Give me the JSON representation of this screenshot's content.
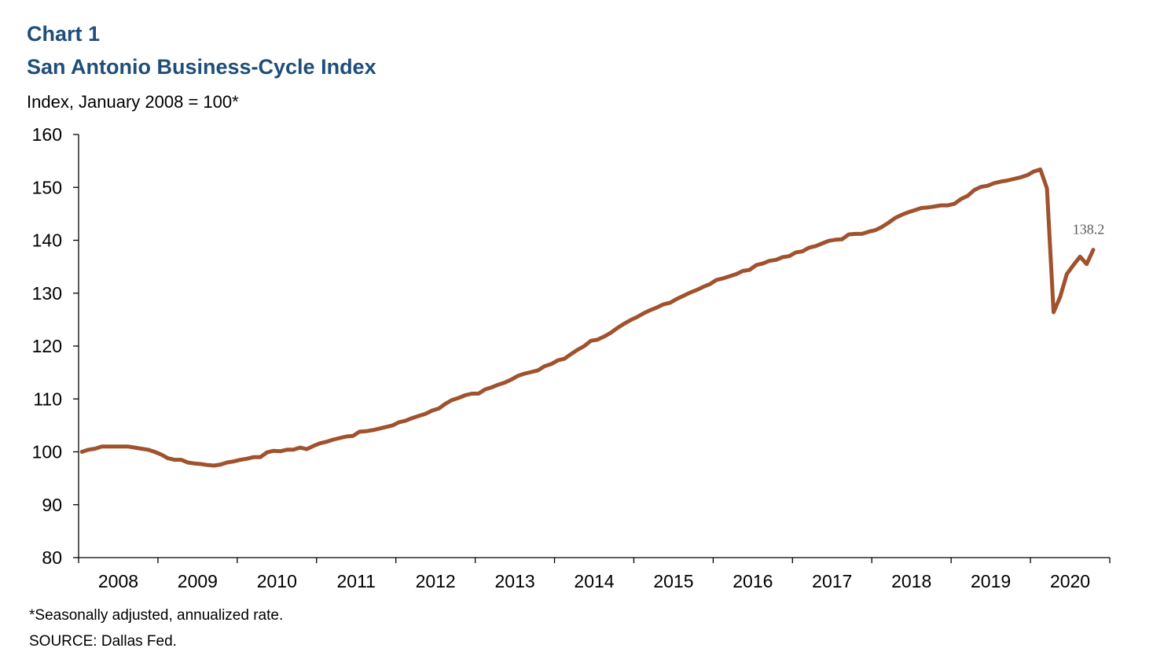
{
  "header": {
    "chart_number": "Chart 1",
    "title": "San Antonio Business-Cycle Index",
    "subtitle": "Index, January 2008 = 100*"
  },
  "footer": {
    "footnote": "*Seasonally adjusted, annualized rate.",
    "source": "SOURCE: Dallas Fed."
  },
  "colors": {
    "title": "#1f4e79",
    "series_line": "#a0522d",
    "axis": "#000000"
  },
  "chart_data": {
    "type": "line",
    "title": "San Antonio Business-Cycle Index",
    "ylabel": "Index, January 2008 = 100*",
    "xlabel": "",
    "ylim": [
      80,
      160
    ],
    "yticks": [
      80,
      90,
      100,
      110,
      120,
      130,
      140,
      150,
      160
    ],
    "xlim": [
      "2008-01",
      "2020-12"
    ],
    "year_labels": [
      "2008",
      "2009",
      "2010",
      "2011",
      "2012",
      "2013",
      "2014",
      "2015",
      "2016",
      "2017",
      "2018",
      "2019",
      "2020"
    ],
    "grid": false,
    "legend": "none",
    "end_label": "138.2",
    "series": [
      {
        "points": [
          [
            "2008-01",
            100.0
          ],
          [
            "2008-02",
            100.4
          ],
          [
            "2008-03",
            100.6
          ],
          [
            "2008-04",
            101.0
          ],
          [
            "2008-05",
            101.0
          ],
          [
            "2008-06",
            101.0
          ],
          [
            "2008-07",
            101.0
          ],
          [
            "2008-08",
            101.0
          ],
          [
            "2008-09",
            100.8
          ],
          [
            "2008-10",
            100.6
          ],
          [
            "2008-11",
            100.4
          ],
          [
            "2008-12",
            100.0
          ],
          [
            "2009-01",
            99.5
          ],
          [
            "2009-02",
            98.8
          ],
          [
            "2009-03",
            98.5
          ],
          [
            "2009-04",
            98.5
          ],
          [
            "2009-05",
            98.0
          ],
          [
            "2009-06",
            97.8
          ],
          [
            "2009-07",
            97.7
          ],
          [
            "2009-08",
            97.5
          ],
          [
            "2009-09",
            97.4
          ],
          [
            "2009-10",
            97.6
          ],
          [
            "2009-11",
            98.0
          ],
          [
            "2009-12",
            98.2
          ],
          [
            "2010-01",
            98.5
          ],
          [
            "2010-02",
            98.7
          ],
          [
            "2010-03",
            99.0
          ],
          [
            "2010-04",
            99.0
          ],
          [
            "2010-05",
            99.9
          ],
          [
            "2010-06",
            100.2
          ],
          [
            "2010-07",
            100.1
          ],
          [
            "2010-08",
            100.4
          ],
          [
            "2010-09",
            100.4
          ],
          [
            "2010-10",
            100.8
          ],
          [
            "2010-11",
            100.5
          ],
          [
            "2010-12",
            101.1
          ],
          [
            "2011-01",
            101.6
          ],
          [
            "2011-02",
            101.9
          ],
          [
            "2011-03",
            102.3
          ],
          [
            "2011-04",
            102.6
          ],
          [
            "2011-05",
            102.9
          ],
          [
            "2011-06",
            103.0
          ],
          [
            "2011-07",
            103.8
          ],
          [
            "2011-08",
            103.9
          ],
          [
            "2011-09",
            104.1
          ],
          [
            "2011-10",
            104.4
          ],
          [
            "2011-11",
            104.7
          ],
          [
            "2011-12",
            105.0
          ],
          [
            "2012-01",
            105.6
          ],
          [
            "2012-02",
            105.9
          ],
          [
            "2012-03",
            106.4
          ],
          [
            "2012-04",
            106.8
          ],
          [
            "2012-05",
            107.2
          ],
          [
            "2012-06",
            107.8
          ],
          [
            "2012-07",
            108.2
          ],
          [
            "2012-08",
            109.1
          ],
          [
            "2012-09",
            109.8
          ],
          [
            "2012-10",
            110.2
          ],
          [
            "2012-11",
            110.7
          ],
          [
            "2012-12",
            111.0
          ],
          [
            "2013-01",
            111.0
          ],
          [
            "2013-02",
            111.8
          ],
          [
            "2013-03",
            112.2
          ],
          [
            "2013-04",
            112.7
          ],
          [
            "2013-05",
            113.1
          ],
          [
            "2013-06",
            113.7
          ],
          [
            "2013-07",
            114.4
          ],
          [
            "2013-08",
            114.8
          ],
          [
            "2013-09",
            115.1
          ],
          [
            "2013-10",
            115.4
          ],
          [
            "2013-11",
            116.2
          ],
          [
            "2013-12",
            116.6
          ],
          [
            "2014-01",
            117.3
          ],
          [
            "2014-02",
            117.6
          ],
          [
            "2014-03",
            118.5
          ],
          [
            "2014-04",
            119.3
          ],
          [
            "2014-05",
            120.0
          ],
          [
            "2014-06",
            121.0
          ],
          [
            "2014-07",
            121.2
          ],
          [
            "2014-08",
            121.8
          ],
          [
            "2014-09",
            122.5
          ],
          [
            "2014-10",
            123.4
          ],
          [
            "2014-11",
            124.2
          ],
          [
            "2014-12",
            124.9
          ],
          [
            "2015-01",
            125.5
          ],
          [
            "2015-02",
            126.2
          ],
          [
            "2015-03",
            126.8
          ],
          [
            "2015-04",
            127.3
          ],
          [
            "2015-05",
            127.9
          ],
          [
            "2015-06",
            128.2
          ],
          [
            "2015-07",
            128.9
          ],
          [
            "2015-08",
            129.5
          ],
          [
            "2015-09",
            130.1
          ],
          [
            "2015-10",
            130.6
          ],
          [
            "2015-11",
            131.2
          ],
          [
            "2015-12",
            131.7
          ],
          [
            "2016-01",
            132.5
          ],
          [
            "2016-02",
            132.8
          ],
          [
            "2016-03",
            133.2
          ],
          [
            "2016-04",
            133.6
          ],
          [
            "2016-05",
            134.2
          ],
          [
            "2016-06",
            134.4
          ],
          [
            "2016-07",
            135.3
          ],
          [
            "2016-08",
            135.6
          ],
          [
            "2016-09",
            136.1
          ],
          [
            "2016-10",
            136.3
          ],
          [
            "2016-11",
            136.8
          ],
          [
            "2016-12",
            137.0
          ],
          [
            "2017-01",
            137.7
          ],
          [
            "2017-02",
            137.9
          ],
          [
            "2017-03",
            138.6
          ],
          [
            "2017-04",
            138.9
          ],
          [
            "2017-05",
            139.4
          ],
          [
            "2017-06",
            139.9
          ],
          [
            "2017-07",
            140.1
          ],
          [
            "2017-08",
            140.2
          ],
          [
            "2017-09",
            141.1
          ],
          [
            "2017-10",
            141.2
          ],
          [
            "2017-11",
            141.2
          ],
          [
            "2017-12",
            141.6
          ],
          [
            "2018-01",
            141.9
          ],
          [
            "2018-02",
            142.5
          ],
          [
            "2018-03",
            143.3
          ],
          [
            "2018-04",
            144.2
          ],
          [
            "2018-05",
            144.8
          ],
          [
            "2018-06",
            145.3
          ],
          [
            "2018-07",
            145.7
          ],
          [
            "2018-08",
            146.1
          ],
          [
            "2018-09",
            146.2
          ],
          [
            "2018-10",
            146.4
          ],
          [
            "2018-11",
            146.6
          ],
          [
            "2018-12",
            146.6
          ],
          [
            "2019-01",
            146.9
          ],
          [
            "2019-02",
            147.8
          ],
          [
            "2019-03",
            148.4
          ],
          [
            "2019-04",
            149.5
          ],
          [
            "2019-05",
            150.1
          ],
          [
            "2019-06",
            150.3
          ],
          [
            "2019-07",
            150.8
          ],
          [
            "2019-08",
            151.1
          ],
          [
            "2019-09",
            151.3
          ],
          [
            "2019-10",
            151.6
          ],
          [
            "2019-11",
            151.9
          ],
          [
            "2019-12",
            152.3
          ],
          [
            "2020-01",
            153.0
          ],
          [
            "2020-02",
            153.4
          ],
          [
            "2020-03",
            149.8
          ],
          [
            "2020-04",
            126.4
          ],
          [
            "2020-05",
            129.3
          ],
          [
            "2020-06",
            133.6
          ],
          [
            "2020-07",
            135.3
          ],
          [
            "2020-08",
            136.9
          ],
          [
            "2020-09",
            135.5
          ],
          [
            "2020-10",
            138.2
          ]
        ]
      }
    ]
  }
}
